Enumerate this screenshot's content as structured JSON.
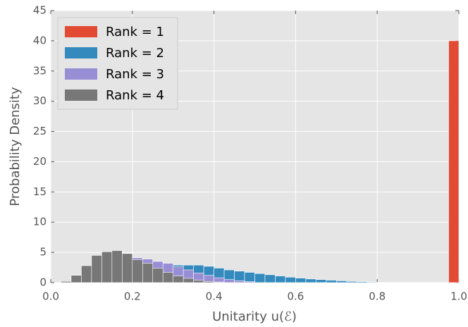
{
  "chart_data": {
    "type": "histogram",
    "xlabel": "Unitarity u(ℰ)",
    "ylabel": "Probability Density",
    "bins": [
      0,
      0.025,
      0.05,
      0.075,
      0.1,
      0.125,
      0.15,
      0.175,
      0.2,
      0.225,
      0.25,
      0.275,
      0.3,
      0.325,
      0.35,
      0.375,
      0.4,
      0.425,
      0.45,
      0.475,
      0.5,
      0.525,
      0.55,
      0.575,
      0.6,
      0.625,
      0.65,
      0.675,
      0.7,
      0.725,
      0.75,
      0.775,
      0.8,
      0.825,
      0.85,
      0.875,
      0.9,
      0.925,
      0.95,
      0.975,
      1.0
    ],
    "series": [
      {
        "name": "Rank = 1",
        "color": "#E24A33",
        "values": [
          0,
          0,
          0,
          0,
          0,
          0,
          0,
          0,
          0,
          0,
          0,
          0,
          0,
          0,
          0,
          0,
          0,
          0,
          0,
          0,
          0,
          0,
          0,
          0,
          0,
          0,
          0,
          0,
          0,
          0,
          0,
          0,
          0,
          0,
          0,
          0,
          0,
          0,
          0,
          40
        ]
      },
      {
        "name": "Rank = 2",
        "color": "#348ABD",
        "values": [
          0,
          0.05,
          0.15,
          0.3,
          0.5,
          0.8,
          1.2,
          1.6,
          2.0,
          2.3,
          2.6,
          2.8,
          2.9,
          2.9,
          2.9,
          2.7,
          2.4,
          2.1,
          1.9,
          1.7,
          1.5,
          1.3,
          1.1,
          0.9,
          0.75,
          0.6,
          0.5,
          0.4,
          0.3,
          0.2,
          0.15,
          0.1,
          0,
          0,
          0,
          0,
          0,
          0,
          0,
          0
        ]
      },
      {
        "name": "Rank = 3",
        "color": "#988ED5",
        "values": [
          0,
          0.1,
          0.3,
          0.8,
          1.5,
          2.3,
          3.0,
          3.6,
          4.1,
          3.9,
          3.5,
          3.2,
          2.6,
          2.1,
          1.6,
          1.2,
          0.8,
          0.5,
          0.3,
          0.15,
          0,
          0,
          0,
          0,
          0,
          0,
          0,
          0,
          0,
          0,
          0,
          0,
          0,
          0,
          0,
          0,
          0,
          0,
          0,
          0
        ]
      },
      {
        "name": "Rank = 4",
        "color": "#777777",
        "values": [
          0,
          0.2,
          1.2,
          2.8,
          4.5,
          5.1,
          5.3,
          4.8,
          3.8,
          3.2,
          2.4,
          1.7,
          1.1,
          0.7,
          0.4,
          0.2,
          0.1,
          0,
          0,
          0,
          0,
          0,
          0,
          0,
          0,
          0,
          0,
          0,
          0,
          0,
          0,
          0,
          0,
          0,
          0,
          0,
          0,
          0,
          0,
          0
        ]
      }
    ],
    "xlim": [
      0,
      1.0
    ],
    "ylim": [
      0,
      45
    ],
    "xticks": [
      {
        "value": 0,
        "label": "0.0"
      },
      0.2,
      0.4,
      0.6,
      0.8,
      {
        "value": 1.0,
        "label": "1.0"
      }
    ],
    "yticks": [
      0,
      5,
      10,
      15,
      20,
      25,
      30,
      35,
      40,
      45
    ],
    "grid": true,
    "legend": "upper left"
  }
}
